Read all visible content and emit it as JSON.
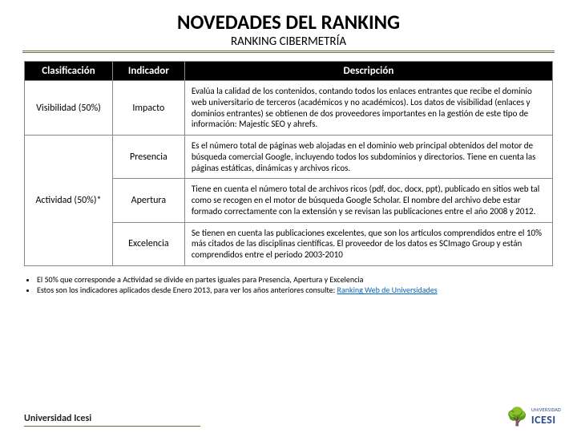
{
  "header": {
    "title": "NOVEDADES DEL RANKING",
    "subtitle": "RANKING CIBERMETRÍA"
  },
  "table": {
    "columns": [
      "Clasificación",
      "Indicador",
      "Descripción"
    ],
    "rows": [
      {
        "clasificacion": "Visibilidad (50%)",
        "indicador": "Impacto",
        "descripcion": "Evalúa la calidad de los contenidos, contando todos los enlaces entrantes que recibe el dominio web universitario de terceros (académicos y no académicos). Los datos de visibilidad (enlaces y dominios entrantes) se obtienen de dos proveedores importantes en la gestión de este tipo de información: Majestic SEO y ahrefs.",
        "rowspan_clasif": 1
      },
      {
        "clasificacion": "Actividad (50%)*",
        "indicador": "Presencia",
        "descripcion": "Es el número total de páginas web alojadas en el dominio web principal obtenidos del motor de búsqueda comercial Google, incluyendo todos los subdominios y directorios. Tiene en cuenta las páginas estáticas, dinámicas y archivos ricos.",
        "rowspan_clasif": 3
      },
      {
        "indicador": "Apertura",
        "descripcion": "Tiene en cuenta el número total de archivos ricos (pdf, doc, docx, ppt), publicado en sitios web tal como se recogen en el motor de búsqueda Google Scholar. El nombre del archivo debe estar formado correctamente con la extensión y se revisan las publicaciones entre el año 2008 y 2012."
      },
      {
        "indicador": "Excelencia",
        "descripcion": "Se tienen en cuenta las publicaciones excelentes, que son los artículos comprendidos entre el 10% más citados de las disciplinas científicas. El proveedor de los datos es SCImago Group y están comprendidos entre el periodo 2003-2010"
      }
    ]
  },
  "notes": {
    "items": [
      "El 50% que corresponde a Actividad se divide en partes iguales para Presencia, Apertura y Excelencia",
      "Estos son los indicadores aplicados desde Enero 2013, para ver los años anteriores consulte: "
    ],
    "link_text": "Ranking Web de Universidades"
  },
  "footer": {
    "university": "Universidad Icesi",
    "logo_text": "ICESI",
    "logo_sub": "UNIVERSIDAD"
  },
  "colors": {
    "header_bg": "#000000",
    "header_fg": "#ffffff",
    "border": "#888888",
    "rule": "#707030",
    "link": "#0563c1",
    "logo_blue": "#2a4a8a",
    "logo_green": "#2a7a2a",
    "background": "#ffffff"
  }
}
